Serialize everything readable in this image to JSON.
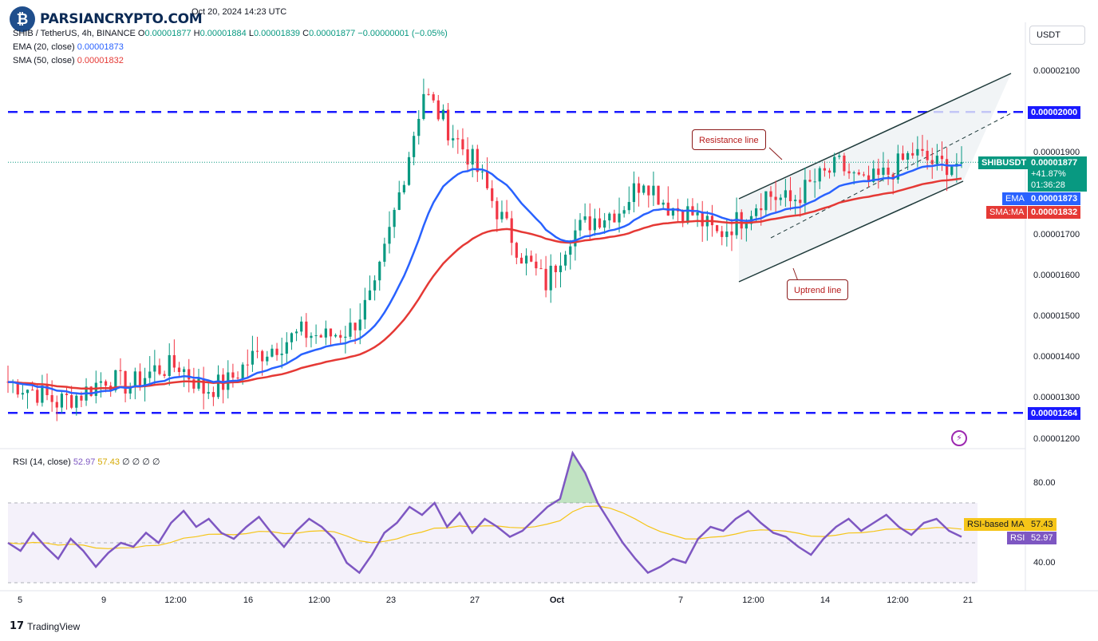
{
  "logo": {
    "text": "PARSIANCRYPTO.COM",
    "icon": "bitcoin-coin-icon"
  },
  "header": {
    "published": "Oct 20, 2024 14:23 UTC",
    "symbol": "SHIB / TetherUS, 4h, BINANCE",
    "o_label": "O",
    "o_value": "0.00001877",
    "h_label": "H",
    "h_value": "0.00001884",
    "l_label": "L",
    "l_value": "0.00001839",
    "c_label": "C",
    "c_value": "0.00001877",
    "change": "−0.00000001 (−0.05%)"
  },
  "indicators": {
    "ema_label": "EMA (20, close)",
    "ema_value": "0.00001873",
    "sma_label": "SMA (50, close)",
    "sma_value": "0.00001832",
    "rsi_label": "RSI (14, close)",
    "rsi_value": "52.97",
    "rsi_ma_value": "57.43",
    "rsi_extra": "∅ ∅ ∅ ∅"
  },
  "price_scale": {
    "unit": "USDT",
    "labels": [
      "0.00002100",
      "0.00001900",
      "0.00001700",
      "0.00001600",
      "0.00001500",
      "0.00001400",
      "0.00001300",
      "0.00001200"
    ]
  },
  "tags": {
    "resistance": "0.00002000",
    "support": "0.00001264",
    "symbol_name": "SHIBUSDT",
    "price": "0.00001877",
    "pct": "+41.87%",
    "countdown": "01:36:28",
    "ema_name": "EMA",
    "ema_val": "0.00001873",
    "sma_name": "SMA:MA",
    "sma_val": "0.00001832",
    "rsi_ma_name": "RSI-based MA",
    "rsi_ma_val": "57.43",
    "rsi_name": "RSI",
    "rsi_val": "52.97"
  },
  "rsi_scale": {
    "labels": [
      "80.00",
      "40.00"
    ]
  },
  "time_axis": {
    "labels": [
      "5",
      "9",
      "12:00",
      "16",
      "12:00",
      "23",
      "27",
      "Oct",
      "7",
      "12:00",
      "14",
      "12:00",
      "21"
    ]
  },
  "annotations": {
    "resistance_line": "Resistance line",
    "uptrend_line": "Uptrend line"
  },
  "footer": {
    "brand": "TradingView"
  },
  "colors": {
    "up": "#089981",
    "down": "#f23645",
    "ema": "#2962ff",
    "sma": "#e53935",
    "rsi": "#7e57c2",
    "rsi_ma": "#f5c518",
    "level": "#1a1aff",
    "channel": "#1e3a3a"
  },
  "chart_data": [
    {
      "type": "candlestick",
      "title": "SHIB / TetherUS, 4h, BINANCE",
      "ylim": [
        1.19e-05,
        2.19e-05
      ],
      "x_ticks": [
        "5",
        "9",
        "12:00",
        "16",
        "12:00",
        "23",
        "27",
        "Oct",
        "7",
        "12:00",
        "14",
        "12:00",
        "21"
      ],
      "close_path": [
        [
          "Sep 5",
          1.34e-05
        ],
        [
          "Sep 7",
          1.32e-05
        ],
        [
          "Sep 8",
          1.29e-05
        ],
        [
          "Sep 9",
          1.31e-05
        ],
        [
          "Sep 10",
          1.35e-05
        ],
        [
          "Sep 12",
          1.33e-05
        ],
        [
          "Sep 14",
          1.37e-05
        ],
        [
          "Sep 15",
          1.38e-05
        ],
        [
          "Sep 17",
          1.32e-05
        ],
        [
          "Sep 18",
          1.34e-05
        ],
        [
          "Sep 19",
          1.4e-05
        ],
        [
          "Sep 20",
          1.43e-05
        ],
        [
          "Sep 22",
          1.46e-05
        ],
        [
          "Sep 23",
          1.45e-05
        ],
        [
          "Sep 24",
          1.47e-05
        ],
        [
          "Sep 25",
          1.56e-05
        ],
        [
          "Sep 26",
          1.8e-05
        ],
        [
          "Sep 27",
          2.05e-05
        ],
        [
          "Sep 28",
          1.96e-05
        ],
        [
          "Sep 29",
          1.88e-05
        ],
        [
          "Sep 30",
          1.76e-05
        ],
        [
          "Oct 1",
          1.65e-05
        ],
        [
          "Oct 3",
          1.58e-05
        ],
        [
          "Oct 4",
          1.7e-05
        ],
        [
          "Oct 5",
          1.74e-05
        ],
        [
          "Oct 6",
          1.76e-05
        ],
        [
          "Oct 7",
          1.84e-05
        ],
        [
          "Oct 8",
          1.77e-05
        ],
        [
          "Oct 9",
          1.75e-05
        ],
        [
          "Oct 10",
          1.7e-05
        ],
        [
          "Oct 11",
          1.74e-05
        ],
        [
          "Oct 12",
          1.8e-05
        ],
        [
          "Oct 13",
          1.78e-05
        ],
        [
          "Oct 14",
          1.83e-05
        ],
        [
          "Oct 15",
          1.87e-05
        ],
        [
          "Oct 16",
          1.82e-05
        ],
        [
          "Oct 17",
          1.85e-05
        ],
        [
          "Oct 18",
          1.9e-05
        ],
        [
          "Oct 19",
          1.87e-05
        ],
        [
          "Oct 20",
          1.877e-05
        ]
      ],
      "series": [
        {
          "name": "EMA (20, close)",
          "last": 1.873e-05
        },
        {
          "name": "SMA (50, close)",
          "last": 1.832e-05
        }
      ],
      "horizontal_levels": [
        2e-05,
        1.264e-05
      ],
      "annotations": [
        "Resistance line",
        "Uptrend line"
      ]
    },
    {
      "type": "line",
      "title": "RSI (14, close)",
      "ylim": [
        30,
        100
      ],
      "y_ticks": [
        "80.00",
        "40.00"
      ],
      "bands": [
        70,
        50,
        30
      ],
      "series": [
        {
          "name": "RSI",
          "last": 52.97,
          "values": [
            50,
            46,
            55,
            48,
            42,
            52,
            46,
            38,
            45,
            50,
            48,
            55,
            50,
            60,
            66,
            58,
            62,
            55,
            52,
            58,
            63,
            55,
            48,
            56,
            62,
            58,
            52,
            40,
            35,
            44,
            55,
            60,
            68,
            64,
            70,
            58,
            65,
            55,
            62,
            58,
            53,
            56,
            62,
            68,
            72,
            95,
            85,
            70,
            60,
            50,
            42,
            35,
            38,
            42,
            40,
            52,
            58,
            56,
            62,
            66,
            60,
            55,
            53,
            48,
            44,
            52,
            58,
            62,
            56,
            60,
            64,
            58,
            54,
            60,
            62,
            56,
            53
          ]
        },
        {
          "name": "RSI-based MA",
          "last": 57.43
        }
      ]
    }
  ]
}
